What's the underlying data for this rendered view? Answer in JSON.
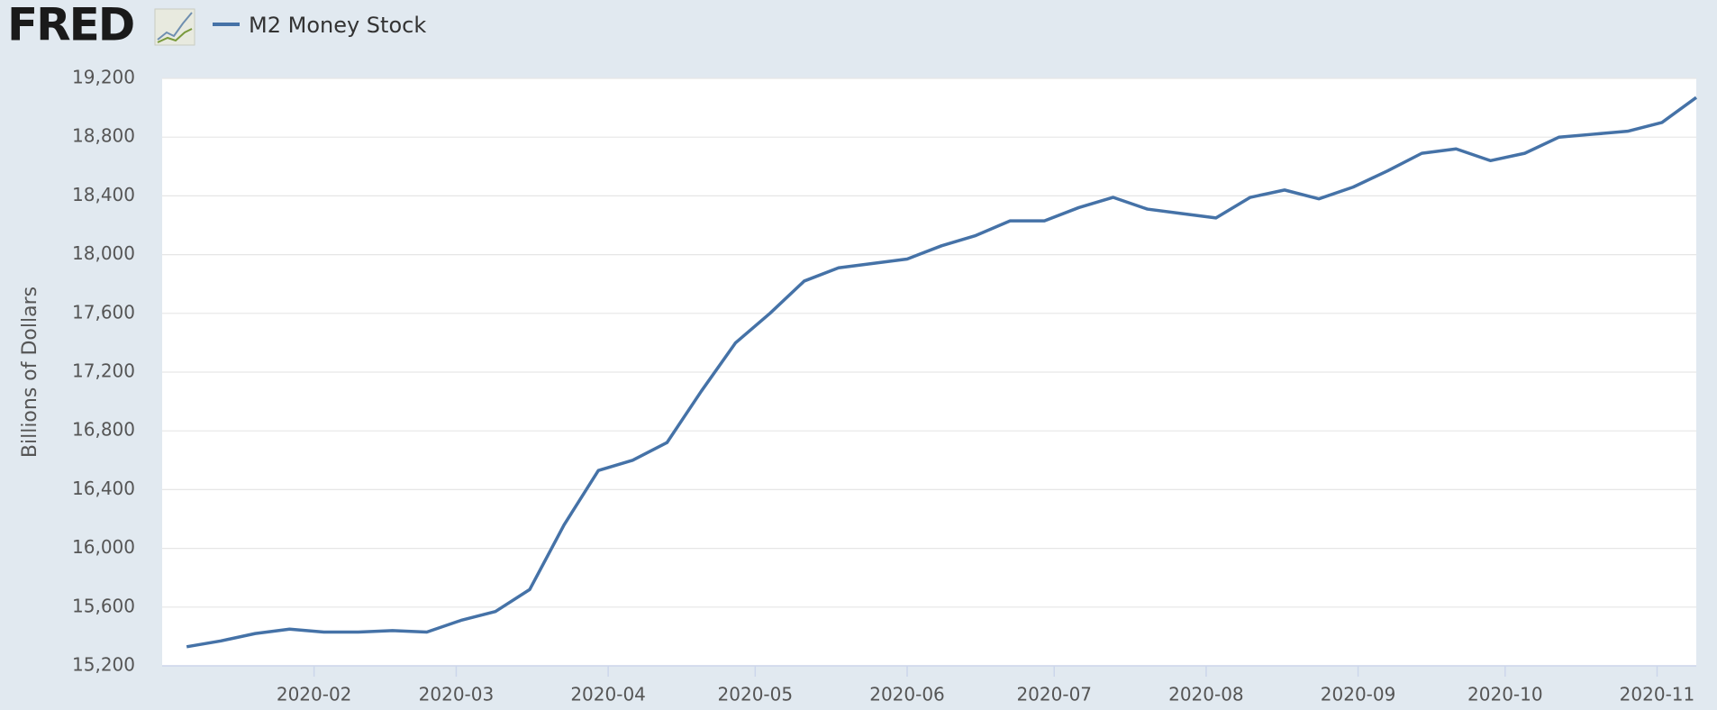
{
  "logo": "FRED",
  "chart_data": {
    "type": "line",
    "y_label": "Billions of Dollars",
    "series": [
      {
        "name": "M2 Money Stock",
        "color": "#4572a7",
        "values": [
          15330,
          15370,
          15420,
          15450,
          15430,
          15430,
          15440,
          15430,
          15510,
          15570,
          15720,
          16160,
          16530,
          16600,
          16720,
          17070,
          17400,
          17600,
          17820,
          17910,
          17940,
          17970,
          18060,
          18130,
          18230,
          18230,
          18320,
          18390,
          18310,
          18280,
          18250,
          18390,
          18440,
          18380,
          18460,
          18570,
          18690,
          18720,
          18640,
          18690,
          18800,
          18820,
          18840,
          18900,
          19070
        ]
      }
    ],
    "xlim": [
      -0.714,
      44
    ],
    "xticks": [
      {
        "value": 3.714,
        "label": "2020-02"
      },
      {
        "value": 7.857,
        "label": "2020-03"
      },
      {
        "value": 12.286,
        "label": "2020-04"
      },
      {
        "value": 16.571,
        "label": "2020-05"
      },
      {
        "value": 21,
        "label": "2020-06"
      },
      {
        "value": 25.286,
        "label": "2020-07"
      },
      {
        "value": 29.714,
        "label": "2020-08"
      },
      {
        "value": 34.143,
        "label": "2020-09"
      },
      {
        "value": 38.429,
        "label": "2020-10"
      },
      {
        "value": 42.857,
        "label": "2020-11"
      }
    ],
    "ylim": [
      15200,
      19200
    ],
    "yticks": [
      {
        "value": 15200,
        "label": "15,200"
      },
      {
        "value": 15600,
        "label": "15,600"
      },
      {
        "value": 16000,
        "label": "16,000"
      },
      {
        "value": 16400,
        "label": "16,400"
      },
      {
        "value": 16800,
        "label": "16,800"
      },
      {
        "value": 17200,
        "label": "17,200"
      },
      {
        "value": 17600,
        "label": "17,600"
      },
      {
        "value": 18000,
        "label": "18,000"
      },
      {
        "value": 18400,
        "label": "18,400"
      },
      {
        "value": 18800,
        "label": "18,800"
      },
      {
        "value": 19200,
        "label": "19,200"
      }
    ],
    "grid": true
  }
}
